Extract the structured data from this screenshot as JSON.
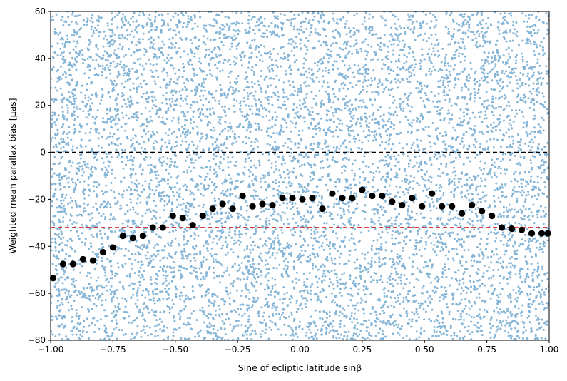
{
  "chart_data": {
    "type": "scatter",
    "title": "",
    "xlabel": "Sine of ecliptic latitude sinβ",
    "ylabel": "Weighted mean parallax bias [μas]",
    "xlim": [
      -1.0,
      1.0
    ],
    "ylim": [
      -80,
      60
    ],
    "xticks": [
      "-1.00",
      "-0.75",
      "-0.50",
      "-0.25",
      "0.00",
      "0.25",
      "0.50",
      "0.75",
      "1.00"
    ],
    "yticks": [
      "-80",
      "-60",
      "-40",
      "-20",
      "0",
      "20",
      "40",
      "60"
    ],
    "grid": false,
    "legend": "none",
    "background_scatter": {
      "description_color": "#1f77b4",
      "alpha": 0.55,
      "x_range": [
        -1.0,
        1.0
      ],
      "y_range": [
        -80,
        60
      ],
      "approx_points": 9000
    },
    "reference_lines": [
      {
        "y": 0,
        "style": "dashed",
        "color": "#000000"
      },
      {
        "y": -32,
        "style": "dashed",
        "color": "#d62728"
      }
    ],
    "binned_means": {
      "color": "#000000",
      "x": [
        -0.99,
        -0.95,
        -0.91,
        -0.87,
        -0.83,
        -0.79,
        -0.75,
        -0.71,
        -0.67,
        -0.63,
        -0.59,
        -0.55,
        -0.51,
        -0.47,
        -0.43,
        -0.39,
        -0.35,
        -0.31,
        -0.27,
        -0.23,
        -0.19,
        -0.15,
        -0.11,
        -0.07,
        -0.03,
        0.01,
        0.05,
        0.09,
        0.13,
        0.17,
        0.21,
        0.25,
        0.29,
        0.33,
        0.37,
        0.41,
        0.45,
        0.49,
        0.53,
        0.57,
        0.61,
        0.65,
        0.69,
        0.73,
        0.77,
        0.81,
        0.85,
        0.89,
        0.93,
        0.97,
        0.995
      ],
      "y": [
        -53.5,
        -47.5,
        -47.5,
        -45.5,
        -46,
        -42.5,
        -40.5,
        -35.5,
        -36.5,
        -35.5,
        -32,
        -32,
        -27,
        -28,
        -31,
        -27,
        -24,
        -22,
        -24,
        -18.5,
        -23,
        -22,
        -22.5,
        -19.5,
        -19.5,
        -20,
        -19.5,
        -24,
        -17.5,
        -19.5,
        -19.5,
        -16,
        -18.5,
        -18.5,
        -21,
        -22.5,
        -19.5,
        -23,
        -17.5,
        -23,
        -23,
        -26,
        -22.5,
        -25,
        -27,
        -32,
        -32.5,
        -33,
        -34.5,
        -34.5,
        -34.5
      ]
    }
  }
}
